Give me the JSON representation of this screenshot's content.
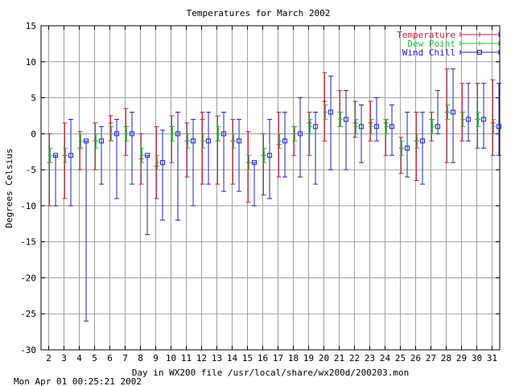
{
  "chart_data": {
    "type": "errorbar",
    "title": "Temperatures for March 2002",
    "xlabel": "Day in WX200 file /usr/local/share/wx200d/200203.mon",
    "ylabel": "Degrees Celsius",
    "xlim": [
      1.5,
      31.5
    ],
    "ylim": [
      -30,
      15
    ],
    "yticks": [
      -30,
      -25,
      -20,
      -15,
      -10,
      -5,
      0,
      5,
      10,
      15
    ],
    "xticks": [
      2,
      3,
      4,
      5,
      6,
      7,
      8,
      9,
      10,
      11,
      12,
      13,
      14,
      15,
      16,
      17,
      18,
      19,
      20,
      21,
      22,
      23,
      24,
      25,
      26,
      27,
      28,
      29,
      30,
      31
    ],
    "grid": true,
    "legend_position": "top-right",
    "x": [
      2,
      3,
      4,
      5,
      6,
      7,
      8,
      9,
      10,
      11,
      12,
      13,
      14,
      15,
      16,
      17,
      18,
      19,
      20,
      21,
      22,
      23,
      24,
      25,
      26,
      27,
      28,
      29,
      30,
      31
    ],
    "series": [
      {
        "name": "Temperature",
        "color": "#d0203c",
        "marker": "plus",
        "offset": 0.05,
        "mean": [
          -4,
          -3,
          -2,
          -1,
          1.5,
          1,
          -3.5,
          -4.5,
          1,
          -1,
          2,
          -1,
          -1,
          -4,
          -3,
          -1.5,
          0,
          1.5,
          4.5,
          3,
          1.5,
          1.5,
          1.5,
          -2,
          -1,
          2,
          3,
          3,
          2,
          1.5
        ],
        "low": [
          -10,
          -9,
          -5,
          -5,
          -1,
          -3,
          -7,
          -9,
          -4,
          -6,
          -7,
          -7,
          -7,
          -9.5,
          -8.5,
          -6,
          -3,
          -3,
          -1,
          1,
          -0.5,
          -1,
          -3,
          -5.5,
          -6.5,
          -1,
          -4,
          -1,
          -2,
          -3
        ],
        "high": [
          0,
          1.5,
          0.3,
          1.5,
          2.5,
          3.5,
          0,
          1,
          2.5,
          1.5,
          3,
          2.5,
          2,
          0.3,
          0,
          3,
          1,
          3,
          8.5,
          6,
          4.5,
          4.5,
          2,
          -0.5,
          3,
          3,
          9,
          7,
          7,
          7.5
        ]
      },
      {
        "name": "Dew Point",
        "color": "#20c040",
        "marker": "plus",
        "offset": 0.1,
        "mean": [
          -3,
          -3,
          -1,
          -1,
          0,
          0,
          -3,
          -4,
          0,
          -1,
          -1,
          0,
          -1,
          -4,
          -3,
          -1,
          0,
          1,
          3,
          2,
          1,
          1,
          1,
          -2,
          -1,
          1,
          3,
          2,
          2,
          1
        ],
        "low": [
          -4,
          -4,
          -2,
          -2,
          -1,
          -1,
          -4,
          -5,
          -1,
          -2,
          -2,
          -1,
          -2,
          -5,
          -4,
          -2,
          -1,
          0,
          2,
          1,
          0,
          0,
          0,
          -3,
          -2,
          0,
          2,
          1,
          1,
          0
        ],
        "high": [
          -2,
          -2,
          0,
          0,
          1,
          1,
          -2,
          -3,
          1,
          0,
          0,
          1,
          0,
          -3,
          -2,
          0,
          1,
          2,
          4,
          3,
          2,
          2,
          2,
          -1,
          0,
          2,
          4,
          3,
          3,
          2
        ]
      },
      {
        "name": "Wind Chill",
        "color": "#2020d0",
        "marker": "square",
        "offset": 0.45,
        "mean": [
          -3,
          -3,
          -1,
          -1,
          0,
          0,
          -3,
          -4,
          0,
          -1,
          -1,
          0,
          -1,
          -4,
          -3,
          -1,
          0,
          1,
          3,
          2,
          1,
          1,
          1,
          -2,
          -1,
          1,
          3,
          2,
          2,
          1
        ],
        "low": [
          -10,
          -10,
          -26,
          -7,
          -9,
          -7,
          -14,
          -12,
          -12,
          -10,
          -7,
          -8,
          -8,
          -10,
          -9,
          -6,
          -6,
          -7,
          -5,
          -5,
          -4,
          -1,
          -3,
          -6,
          -7,
          0,
          -4,
          -1,
          -2,
          -3
        ],
        "high": [
          -3,
          2,
          -1,
          1,
          2,
          3,
          -3,
          0.5,
          3,
          2,
          3,
          3,
          2,
          -4,
          2,
          3,
          5,
          3,
          8,
          6,
          4,
          5,
          4,
          3,
          3,
          6,
          9,
          7,
          7,
          7
        ]
      }
    ]
  },
  "footer": {
    "timestamp": "Mon Apr 01 00:25:21 2002"
  }
}
